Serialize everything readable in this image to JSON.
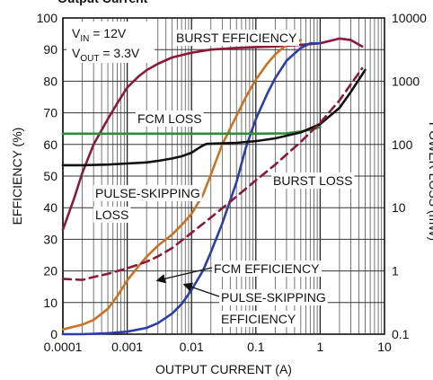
{
  "chart_data": {
    "type": "line",
    "title": "Output Current",
    "xlabel": "OUTPUT CURRENT (A)",
    "ylabel": "EFFICIENCY (%)",
    "y2label": "POWER LOSS (mW)",
    "x_scale": "log",
    "xlim": [
      0.0001,
      10
    ],
    "ylim": [
      0,
      100
    ],
    "y2_scale": "log",
    "y2lim": [
      0.1,
      10000
    ],
    "grid": true,
    "x_ticks": [
      "0.0001",
      "0.001",
      "0.01",
      "0.1",
      "1",
      "10"
    ],
    "y_ticks": [
      "0",
      "10",
      "20",
      "30",
      "40",
      "50",
      "60",
      "70",
      "80",
      "90",
      "100"
    ],
    "y2_ticks": [
      "0.1",
      "1",
      "10",
      "100",
      "1000",
      "10000"
    ],
    "conditions": [
      "V_IN = 12V",
      "V_OUT = 3.3V"
    ],
    "annotations": [
      "BURST EFFICIENCY",
      "FCM LOSS",
      "BURST LOSS",
      "PULSE-SKIPPING",
      "LOSS",
      "FCM EFFICIENCY",
      "PULSE-SKIPPING",
      "EFFICIENCY"
    ],
    "series": [
      {
        "name": "BURST EFFICIENCY",
        "axis": "left",
        "color": "#8B1A3A",
        "style": "solid",
        "x": [
          0.0001,
          0.00015,
          0.0002,
          0.0003,
          0.0005,
          0.0007,
          0.001,
          0.0015,
          0.002,
          0.003,
          0.005,
          0.01,
          0.02,
          0.05,
          0.1,
          0.2,
          0.5,
          1,
          2,
          3,
          4.5
        ],
        "y": [
          33,
          43,
          51,
          60,
          68,
          73,
          78,
          81.5,
          83.5,
          85.5,
          87.5,
          89,
          90,
          90.5,
          90.8,
          91,
          91.5,
          92,
          93.5,
          93,
          91
        ]
      },
      {
        "name": "FCM EFFICIENCY",
        "axis": "left",
        "color": "#2A3FA8",
        "style": "solid",
        "x": [
          0.0001,
          0.0002,
          0.0005,
          0.001,
          0.002,
          0.003,
          0.005,
          0.007,
          0.01,
          0.015,
          0.02,
          0.03,
          0.05,
          0.07,
          0.1,
          0.15,
          0.2,
          0.3,
          0.5,
          0.7,
          1
        ],
        "y": [
          0,
          0,
          0.3,
          0.8,
          2,
          3.5,
          6.5,
          9.5,
          14,
          20,
          26,
          35,
          48,
          59,
          68,
          76,
          81,
          86.5,
          90.5,
          92,
          92
        ]
      },
      {
        "name": "PULSE-SKIPPING EFFICIENCY",
        "axis": "left",
        "color": "#C87322",
        "style": "solid",
        "x": [
          0.0001,
          0.0002,
          0.0003,
          0.0005,
          0.0007,
          0.001,
          0.0015,
          0.002,
          0.003,
          0.005,
          0.007,
          0.01,
          0.015,
          0.02,
          0.03,
          0.05,
          0.07,
          0.1,
          0.15,
          0.2,
          0.3,
          0.5
        ],
        "y": [
          1.5,
          3,
          4.5,
          8,
          12,
          17,
          21.5,
          24.5,
          28,
          31.5,
          34.5,
          38,
          44,
          50.5,
          60,
          69,
          75,
          80.5,
          85.5,
          88.5,
          91.5,
          93
        ]
      },
      {
        "name": "FCM LOSS",
        "axis": "right",
        "color": "#2E8B3A",
        "style": "solid",
        "x": [
          0.0001,
          0.001,
          0.01,
          0.1,
          0.3,
          0.5,
          0.8,
          1
        ],
        "y": [
          148,
          148,
          148,
          148,
          150,
          160,
          175,
          190
        ]
      },
      {
        "name": "PULSE-SKIPPING LOSS",
        "axis": "right",
        "color": "#111111",
        "style": "solid",
        "x": [
          0.0001,
          0.0002,
          0.0005,
          0.001,
          0.002,
          0.003,
          0.005,
          0.007,
          0.01,
          0.013,
          0.015,
          0.017,
          0.02,
          0.03,
          0.05,
          0.1,
          0.2,
          0.5,
          1,
          2,
          3,
          5
        ],
        "y": [
          47,
          47,
          48,
          50,
          52,
          55,
          60,
          65,
          74,
          88,
          96,
          102,
          103,
          104,
          106,
          113,
          125,
          155,
          210,
          380,
          680,
          1500
        ]
      },
      {
        "name": "BURST LOSS",
        "axis": "right",
        "color": "#8B1A3A",
        "style": "dashed",
        "x": [
          0.0001,
          0.0002,
          0.0003,
          0.0005,
          0.001,
          0.002,
          0.003,
          0.005,
          0.01,
          0.02,
          0.05,
          0.1,
          0.2,
          0.5,
          1,
          2,
          3,
          4.5
        ],
        "y": [
          0.75,
          0.72,
          0.8,
          0.9,
          1.1,
          1.4,
          1.7,
          2.3,
          4,
          7,
          15,
          27,
          48,
          110,
          220,
          500,
          900,
          1600
        ]
      }
    ]
  }
}
